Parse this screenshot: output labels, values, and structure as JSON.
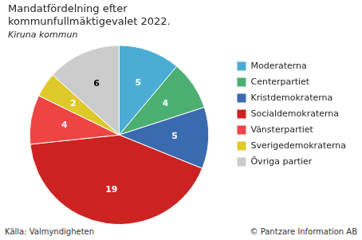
{
  "chart_data": {
    "type": "pie",
    "title": "Mandatfördelning efter\nkommunfullmäktigevalet 2022.",
    "subtitle": "Kiruna kommun",
    "categories": [
      "Moderaterna",
      "Centerpartiet",
      "Kristdemokraterna",
      "Socialdemokraterna",
      "Vänsterpartiet",
      "Sverigedemokraterna",
      "Övriga partier"
    ],
    "values": [
      5,
      4,
      5,
      19,
      4,
      2,
      6
    ],
    "colors": [
      "#4BADD4",
      "#4CAF72",
      "#3B6BAF",
      "#CC2222",
      "#EE4444",
      "#DFC82A",
      "#CCCCCC"
    ],
    "data_labels": true,
    "legend": "right",
    "annotations": [
      "Källa: Valmyndigheten",
      "© Pantzare Information AB"
    ]
  }
}
